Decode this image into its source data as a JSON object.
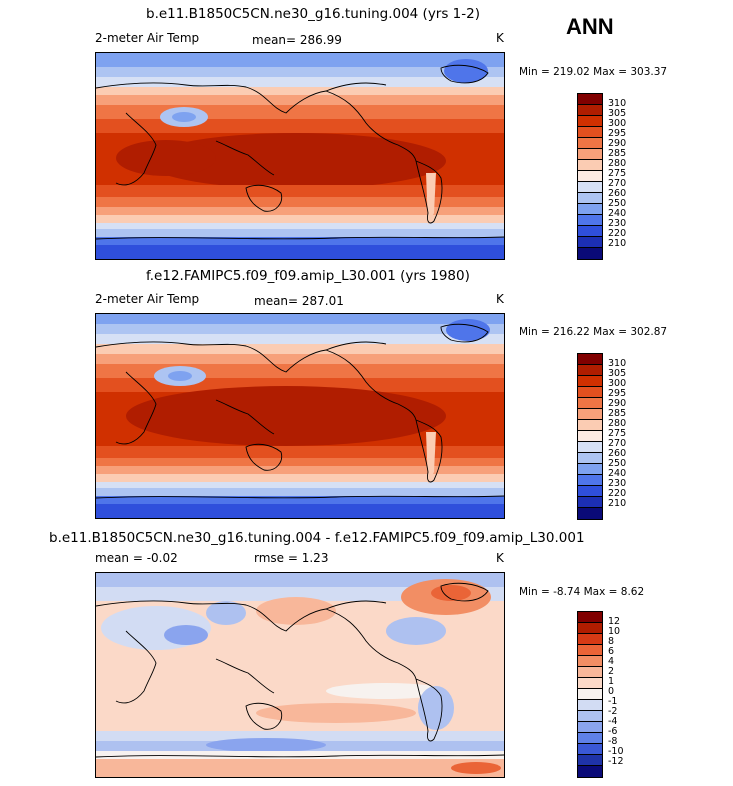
{
  "header": {
    "season": "ANN"
  },
  "panels": [
    {
      "title": "b.e11.B1850C5CN.ne30_g16.tuning.004 (yrs 1-2)",
      "variable": "2-meter Air Temp",
      "stat": "mean= 286.99",
      "units": "K",
      "minmax": "Min = 219.02  Max = 303.37",
      "levels": [
        "310",
        "305",
        "300",
        "295",
        "290",
        "285",
        "280",
        "275",
        "270",
        "260",
        "250",
        "240",
        "230",
        "220",
        "210"
      ]
    },
    {
      "title": "f.e12.FAMIPC5.f09_f09.amip_L30.001 (yrs 1980)",
      "variable": "2-meter Air Temp",
      "stat": "mean= 287.01",
      "units": "K",
      "minmax": "Min = 216.22  Max = 302.87",
      "levels": [
        "310",
        "305",
        "300",
        "295",
        "290",
        "285",
        "280",
        "275",
        "270",
        "260",
        "250",
        "240",
        "230",
        "220",
        "210"
      ]
    },
    {
      "title": "b.e11.B1850C5CN.ne30_g16.tuning.004 - f.e12.FAMIPC5.f09_f09.amip_L30.001",
      "variable": "mean =  -0.02",
      "stat": "rmse =   1.23",
      "units": "K",
      "minmax": "Min =  -8.74  Max =   8.62",
      "levels": [
        "12",
        "10",
        "8",
        "6",
        "4",
        "2",
        "1",
        "0",
        "-1",
        "-2",
        "-4",
        "-6",
        "-8",
        "-10",
        "-12"
      ]
    }
  ],
  "colors": {
    "abs_scale": [
      "#800000",
      "#b01d00",
      "#d03000",
      "#e3501f",
      "#ef7545",
      "#f7a07a",
      "#fbccb3",
      "#fcebe3",
      "#d6e0f5",
      "#adc4f2",
      "#7ea2f0",
      "#4f75ea",
      "#2f4fdc",
      "#1c2fb4",
      "#0a0a78"
    ],
    "diff_scale": [
      "#800000",
      "#b01d00",
      "#d63a15",
      "#ea6437",
      "#f28e64",
      "#f8b79a",
      "#fbd9c8",
      "#f7f2ef",
      "#d2dcf3",
      "#aec1f0",
      "#8aa4ee",
      "#5f81e8",
      "#3a58d6",
      "#1f33a8",
      "#0a0a78"
    ]
  }
}
